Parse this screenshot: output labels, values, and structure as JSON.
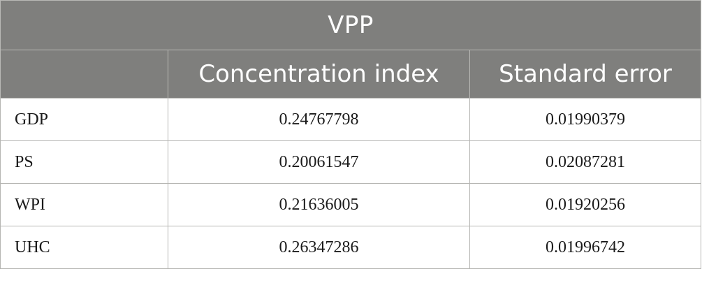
{
  "table": {
    "group_header": "VPP",
    "columns": [
      "",
      "Concentration index",
      "Standard error"
    ],
    "rows": [
      {
        "label": "GDP",
        "concentration_index": "0.24767798",
        "standard_error": "0.01990379"
      },
      {
        "label": "PS",
        "concentration_index": "0.20061547",
        "standard_error": "0.02087281"
      },
      {
        "label": "WPI",
        "concentration_index": "0.21636005",
        "standard_error": "0.01920256"
      },
      {
        "label": "UHC",
        "concentration_index": "0.26347286",
        "standard_error": "0.01996742"
      }
    ]
  },
  "colors": {
    "header_bg": "#7f7f7d",
    "header_text": "#ffffff",
    "border": "#b5b5b2"
  }
}
